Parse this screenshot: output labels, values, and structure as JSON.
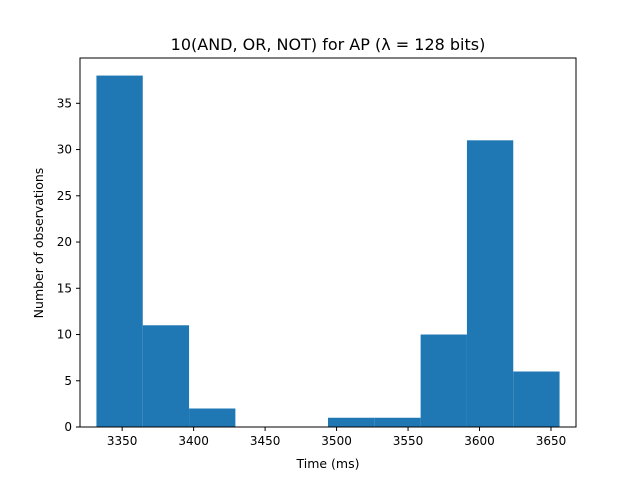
{
  "chart_data": {
    "type": "bar",
    "title": "10(AND, OR, NOT) for AP (λ = 128 bits)",
    "xlabel": "Time (ms)",
    "ylabel": "Number of observations",
    "xlim": [
      3320.5,
      3667.5
    ],
    "ylim": [
      0,
      39.9
    ],
    "xticks": [
      3350,
      3400,
      3450,
      3500,
      3550,
      3600,
      3650
    ],
    "yticks": [
      0,
      5,
      10,
      15,
      20,
      25,
      30,
      35
    ],
    "bins": [
      {
        "start": 3332,
        "end": 3364.4,
        "count": 38
      },
      {
        "start": 3364.4,
        "end": 3396.8,
        "count": 11
      },
      {
        "start": 3396.8,
        "end": 3429.2,
        "count": 2
      },
      {
        "start": 3429.2,
        "end": 3461.6,
        "count": 0
      },
      {
        "start": 3461.6,
        "end": 3494.0,
        "count": 0
      },
      {
        "start": 3494.0,
        "end": 3526.4,
        "count": 1
      },
      {
        "start": 3526.4,
        "end": 3558.8,
        "count": 1
      },
      {
        "start": 3558.8,
        "end": 3591.2,
        "count": 10
      },
      {
        "start": 3591.2,
        "end": 3623.6,
        "count": 31
      },
      {
        "start": 3623.6,
        "end": 3656.0,
        "count": 6
      }
    ],
    "color": "#1f77b4",
    "grid": false
  }
}
